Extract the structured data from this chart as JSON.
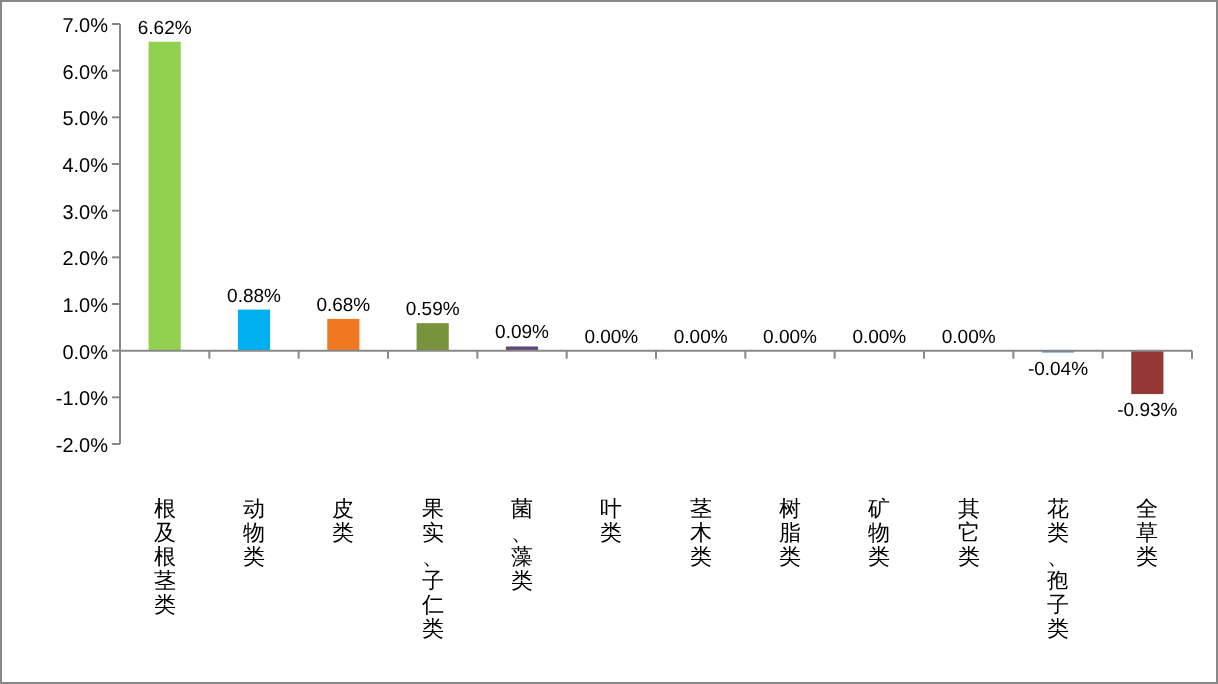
{
  "chart_data": {
    "type": "bar",
    "categories": [
      "根及根茎类",
      "动物类",
      "皮类",
      "果实、子仁类",
      "菌、藻类",
      "叶类",
      "茎木类",
      "树脂类",
      "矿物类",
      "其它类",
      "花类、孢子类",
      "全草类"
    ],
    "values": [
      6.62,
      0.88,
      0.68,
      0.59,
      0.09,
      0,
      0,
      0,
      0,
      0,
      -0.04,
      -0.93
    ],
    "colors": [
      "#92d050",
      "#00b0f0",
      "#f07820",
      "#77933c",
      "#604a7b",
      "#604a7b",
      "#604a7b",
      "#604a7b",
      "#604a7b",
      "#604a7b",
      "#4f81bd",
      "#953735"
    ],
    "value_labels": [
      "6.62%",
      "0.88%",
      "0.68%",
      "0.59%",
      "0.09%",
      "0.00%",
      "0.00%",
      "0.00%",
      "0.00%",
      "0.00%",
      "-0.04%",
      "-0.93%"
    ],
    "ylim": [
      -2,
      7
    ],
    "yticks": [
      {
        "value": -2,
        "label": "-2.0%"
      },
      {
        "value": -1,
        "label": "-1.0%"
      },
      {
        "value": 0,
        "label": "0.0%"
      },
      {
        "value": 1,
        "label": "1.0%"
      },
      {
        "value": 2,
        "label": "2.0%"
      },
      {
        "value": 3,
        "label": "3.0%"
      },
      {
        "value": 4,
        "label": "4.0%"
      },
      {
        "value": 5,
        "label": "5.0%"
      },
      {
        "value": 6,
        "label": "6.0%"
      },
      {
        "value": 7,
        "label": "7.0%"
      }
    ]
  }
}
